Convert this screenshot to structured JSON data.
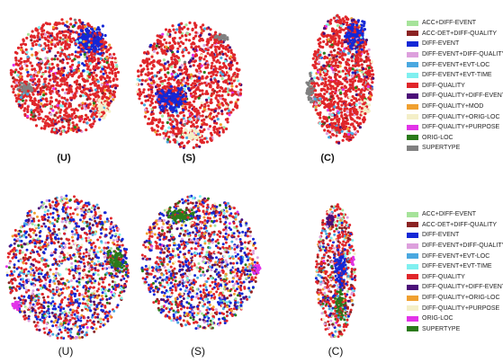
{
  "chart_data": [
    {
      "type": "scatter",
      "panels": [
        "(U)",
        "(S)",
        "(C)"
      ],
      "legend": [
        {
          "name": "ACC+DIFF-EVENT",
          "color": "#a6e39a"
        },
        {
          "name": "ACC-DET+DIFF-QUALITY",
          "color": "#8b2323"
        },
        {
          "name": "DIFF-EVENT",
          "color": "#1428d6"
        },
        {
          "name": "DIFF-EVENT+DIFF-QUALITY",
          "color": "#dda0dd"
        },
        {
          "name": "DIFF-EVENT+EVT-LOC",
          "color": "#4aa8e0"
        },
        {
          "name": "DIFF-EVENT+EVT-TIME",
          "color": "#7ff0f0"
        },
        {
          "name": "DIFF-QUALITY",
          "color": "#e0262a"
        },
        {
          "name": "DIFF-QUALITY+DIFF-EVENT",
          "color": "#4b0f78"
        },
        {
          "name": "DIFF-QUALITY+MOD",
          "color": "#f0a030"
        },
        {
          "name": "DIFF-QUALITY+ORIG-LOC",
          "color": "#f4efc8"
        },
        {
          "name": "DIFF-QUALITY+PURPOSE",
          "color": "#e233e8"
        },
        {
          "name": "ORIG-LOC",
          "color": "#2a7a1a"
        },
        {
          "name": "SUPERTYPE",
          "color": "#808080"
        }
      ]
    },
    {
      "type": "scatter",
      "panels": [
        "(U)",
        "(S)",
        "(C)"
      ],
      "legend": [
        {
          "name": "ACC+DIFF-EVENT",
          "color": "#a6e39a"
        },
        {
          "name": "ACC-DET+DIFF-QUALITY",
          "color": "#8b2323"
        },
        {
          "name": "DIFF-EVENT",
          "color": "#1428d6"
        },
        {
          "name": "DIFF-EVENT+DIFF-QUALITY",
          "color": "#dda0dd"
        },
        {
          "name": "DIFF-EVENT+EVT-LOC",
          "color": "#4aa8e0"
        },
        {
          "name": "DIFF-EVENT+EVT-TIME",
          "color": "#7ff0f0"
        },
        {
          "name": "DIFF-QUALITY",
          "color": "#e0262a"
        },
        {
          "name": "DIFF-QUALITY+DIFF-EVENT",
          "color": "#4b0f78"
        },
        {
          "name": "DIFF-QUALITY+ORIG-LOC",
          "color": "#f0a030"
        },
        {
          "name": "DIFF-QUALITY+PURPOSE",
          "color": "#f4efc8"
        },
        {
          "name": "ORIG-LOC",
          "color": "#e233e8"
        },
        {
          "name": "SUPERTYPE",
          "color": "#2a7a1a"
        }
      ]
    }
  ]
}
